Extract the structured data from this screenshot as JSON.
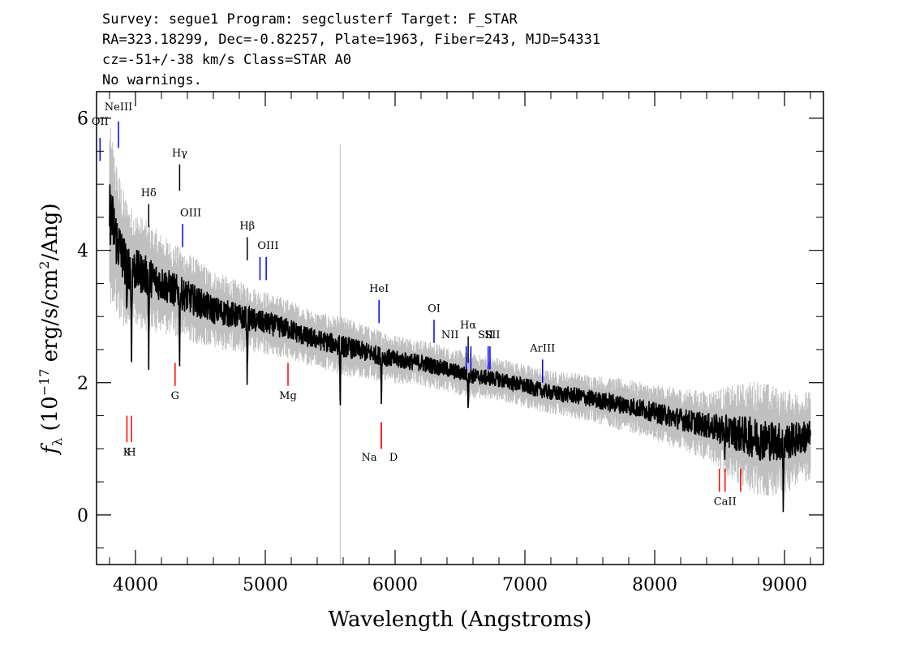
{
  "header": {
    "line1": "Survey: segue1 Program: segclusterf Target: F_STAR",
    "line2": "RA=323.18299, Dec=-0.82257, Plate=1963, Fiber=243, MJD=54331",
    "line3": "cz=-51+/-38 km/s Class=STAR A0",
    "line4": "No warnings."
  },
  "chart_data": {
    "type": "line",
    "xlabel": "Wavelength (Angstroms)",
    "ylabel": "f_λ (10^-17 erg/s/cm^2/Ang)",
    "xlim": [
      3700,
      9300
    ],
    "ylim": [
      -0.75,
      6.4
    ],
    "x_ticks": [
      4000,
      5000,
      6000,
      7000,
      8000,
      9000
    ],
    "y_ticks": [
      0,
      2,
      4,
      6
    ],
    "grid": false,
    "colors": {
      "spectrum": "#000000",
      "error": "#c0c0c0",
      "emission": "#0000ff",
      "absorption": "#ff0000",
      "balmer": "#000000"
    },
    "series": [
      {
        "x": [
          3800,
          3850,
          3900,
          3950,
          4000,
          4100,
          4200,
          4300,
          4400,
          4500,
          4600,
          4700,
          4800,
          4900,
          5000,
          5100,
          5200,
          5300,
          5400,
          5500,
          5600,
          5700,
          5800,
          5900,
          6000,
          6200,
          6400,
          6600,
          6800,
          7000,
          7200,
          7400,
          7600,
          7800,
          8000,
          8200,
          8400,
          8600,
          8800,
          9000,
          9200
        ],
        "values": [
          4.6,
          4.2,
          3.9,
          3.75,
          3.7,
          3.6,
          3.5,
          3.4,
          3.3,
          3.2,
          3.1,
          3.05,
          3.0,
          2.95,
          2.9,
          2.85,
          2.8,
          2.7,
          2.65,
          2.6,
          2.55,
          2.5,
          2.45,
          2.4,
          2.35,
          2.3,
          2.2,
          2.1,
          2.05,
          1.95,
          1.85,
          1.8,
          1.72,
          1.65,
          1.55,
          1.45,
          1.35,
          1.25,
          1.15,
          1.1,
          1.2
        ]
      },
      {
        "x": [
          3800,
          3900,
          4000,
          4200,
          4400,
          4600,
          4800,
          5000,
          5200,
          5400,
          5600,
          5800,
          6000,
          6400,
          6800,
          7200,
          7600,
          8000,
          8400,
          8800,
          9200
        ],
        "values": [
          0.9,
          0.7,
          0.6,
          0.5,
          0.45,
          0.4,
          0.35,
          0.32,
          0.3,
          0.28,
          0.3,
          0.27,
          0.25,
          0.23,
          0.22,
          0.22,
          0.25,
          0.28,
          0.35,
          0.6,
          0.45
        ]
      }
    ],
    "emission_lines": [
      {
        "label": "OII",
        "x": 3727
      },
      {
        "label": "NeIII",
        "x": 3869
      },
      {
        "label": "OIII",
        "x": 4363
      },
      {
        "label": "OIII",
        "x": 4959
      },
      {
        "label": "OIII",
        "x": 5007
      },
      {
        "label": "HeI",
        "x": 5876
      },
      {
        "label": "OI",
        "x": 6300
      },
      {
        "label": "NII",
        "x": 6548
      },
      {
        "label": "NII",
        "x": 6584
      },
      {
        "label": "SII",
        "x": 6717
      },
      {
        "label": "SII",
        "x": 6731
      },
      {
        "label": "ArIII",
        "x": 7136
      }
    ],
    "balmer_lines": [
      {
        "label": "Hγ",
        "x": 4340
      },
      {
        "label": "Hδ",
        "x": 4102
      },
      {
        "label": "Hβ",
        "x": 4861
      },
      {
        "label": "Hα",
        "x": 6563
      }
    ],
    "absorption_lines": [
      {
        "label": "K",
        "x": 3934
      },
      {
        "label": "H",
        "x": 3969
      },
      {
        "label": "G",
        "x": 4305
      },
      {
        "label": "Mg",
        "x": 5175
      },
      {
        "label": "Na",
        "x": 5894
      },
      {
        "label": "D",
        "x": 5894
      },
      {
        "label": "CaII",
        "x": 8498
      },
      {
        "label": "CaII",
        "x": 8542
      },
      {
        "label": "CaII",
        "x": 8662
      }
    ]
  }
}
